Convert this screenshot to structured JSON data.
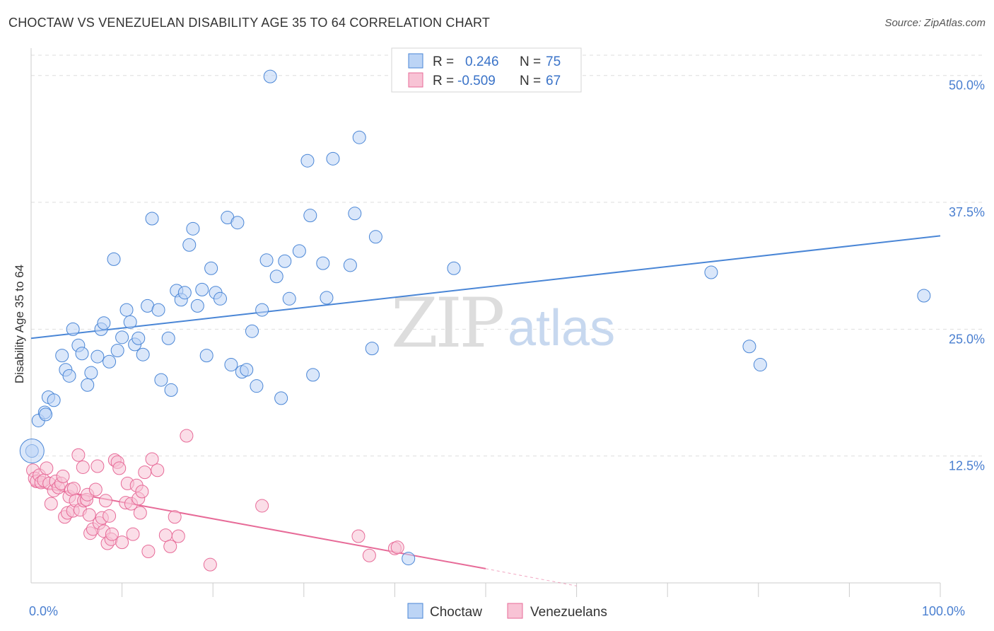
{
  "title": "CHOCTAW VS VENEZUELAN DISABILITY AGE 35 TO 64 CORRELATION CHART",
  "source": "Source: ZipAtlas.com",
  "watermark": {
    "zip": "ZIP",
    "atlas": "atlas"
  },
  "colors": {
    "choctaw": "#4a86d6",
    "choctaw_fill": "#bcd4f5",
    "venezuelans": "#e76b98",
    "venezuelans_fill": "#f8c3d5",
    "grid": "#dddddd",
    "tick": "#4a7fd0"
  },
  "legend_top": {
    "rows": [
      {
        "r_label": "R =",
        "r_value": "0.246",
        "n_label": "N =",
        "n_value": "75"
      },
      {
        "r_label": "R =",
        "r_value": "-0.509",
        "n_label": "N =",
        "n_value": "67"
      }
    ]
  },
  "legend_bottom": [
    "Choctaw",
    "Venezuelans"
  ],
  "chart_data": {
    "type": "scatter",
    "ylabel": "Disability Age 35 to 64",
    "xlim": [
      0,
      100
    ],
    "ylim": [
      0,
      52
    ],
    "y_ticks": [
      {
        "value": 12.5,
        "label": "12.5%"
      },
      {
        "value": 25,
        "label": "25.0%"
      },
      {
        "value": 37.5,
        "label": "37.5%"
      },
      {
        "value": 50,
        "label": "50.0%"
      }
    ],
    "x_tick_labels": [
      {
        "value": 0,
        "label": "0.0%"
      },
      {
        "value": 100,
        "label": "100.0%"
      }
    ],
    "x_minor_ticks": [
      10,
      20,
      30,
      40,
      50,
      60,
      70,
      80,
      90,
      100
    ],
    "grid": true,
    "legend_position": "top-center",
    "series": [
      {
        "name": "Choctaw",
        "points": [
          [
            0.1,
            13.0
          ],
          [
            0.8,
            16.0
          ],
          [
            1.5,
            16.8
          ],
          [
            1.9,
            18.3
          ],
          [
            2.5,
            18.0
          ],
          [
            1.6,
            16.6
          ],
          [
            3.4,
            22.4
          ],
          [
            3.8,
            21.0
          ],
          [
            4.2,
            20.4
          ],
          [
            4.6,
            25.0
          ],
          [
            5.2,
            23.4
          ],
          [
            5.6,
            22.6
          ],
          [
            6.2,
            19.5
          ],
          [
            6.6,
            20.7
          ],
          [
            7.3,
            22.3
          ],
          [
            7.7,
            25.0
          ],
          [
            8.0,
            25.6
          ],
          [
            8.6,
            21.8
          ],
          [
            9.1,
            31.9
          ],
          [
            9.5,
            22.9
          ],
          [
            10.0,
            24.2
          ],
          [
            10.5,
            26.9
          ],
          [
            10.9,
            25.7
          ],
          [
            11.4,
            23.5
          ],
          [
            11.8,
            24.1
          ],
          [
            12.3,
            22.5
          ],
          [
            12.8,
            27.3
          ],
          [
            13.3,
            35.9
          ],
          [
            14.0,
            26.9
          ],
          [
            14.3,
            20.0
          ],
          [
            15.1,
            24.1
          ],
          [
            15.4,
            19.0
          ],
          [
            16.0,
            28.8
          ],
          [
            16.5,
            27.9
          ],
          [
            16.9,
            28.6
          ],
          [
            17.4,
            33.3
          ],
          [
            17.8,
            34.9
          ],
          [
            18.3,
            27.3
          ],
          [
            18.8,
            28.9
          ],
          [
            19.3,
            22.4
          ],
          [
            19.8,
            31.0
          ],
          [
            20.3,
            28.6
          ],
          [
            20.8,
            28.0
          ],
          [
            21.6,
            36.0
          ],
          [
            22.0,
            21.5
          ],
          [
            22.7,
            35.5
          ],
          [
            23.2,
            20.8
          ],
          [
            23.7,
            21.0
          ],
          [
            24.3,
            24.8
          ],
          [
            24.8,
            19.4
          ],
          [
            25.4,
            26.9
          ],
          [
            25.9,
            31.8
          ],
          [
            27.0,
            30.2
          ],
          [
            27.5,
            18.2
          ],
          [
            27.9,
            31.7
          ],
          [
            28.4,
            28.0
          ],
          [
            29.5,
            32.7
          ],
          [
            30.4,
            41.6
          ],
          [
            30.7,
            36.2
          ],
          [
            31.0,
            20.5
          ],
          [
            32.1,
            31.5
          ],
          [
            32.5,
            28.1
          ],
          [
            33.2,
            41.8
          ],
          [
            35.1,
            31.3
          ],
          [
            35.6,
            36.4
          ],
          [
            36.1,
            43.9
          ],
          [
            37.5,
            23.1
          ],
          [
            37.9,
            34.1
          ],
          [
            41.5,
            2.4
          ],
          [
            46.5,
            31.0
          ],
          [
            74.8,
            30.6
          ],
          [
            79.0,
            23.3
          ],
          [
            80.2,
            21.5
          ],
          [
            98.2,
            28.3
          ],
          [
            26.3,
            49.9
          ]
        ],
        "trend": {
          "x": [
            0,
            100
          ],
          "y": [
            24.1,
            34.2
          ]
        }
      },
      {
        "name": "Venezuelans",
        "points": [
          [
            0.2,
            11.1
          ],
          [
            0.4,
            10.3
          ],
          [
            0.6,
            10.0
          ],
          [
            0.9,
            10.6
          ],
          [
            1.1,
            9.9
          ],
          [
            1.4,
            10.1
          ],
          [
            1.7,
            11.3
          ],
          [
            2.0,
            9.8
          ],
          [
            2.2,
            7.8
          ],
          [
            2.5,
            9.1
          ],
          [
            2.7,
            10.0
          ],
          [
            3.0,
            9.4
          ],
          [
            3.3,
            9.8
          ],
          [
            3.5,
            10.5
          ],
          [
            3.7,
            6.5
          ],
          [
            4.0,
            6.9
          ],
          [
            4.2,
            8.5
          ],
          [
            4.4,
            9.2
          ],
          [
            4.6,
            7.1
          ],
          [
            4.7,
            9.3
          ],
          [
            4.9,
            8.1
          ],
          [
            5.2,
            12.6
          ],
          [
            5.4,
            7.2
          ],
          [
            5.7,
            11.4
          ],
          [
            5.8,
            8.1
          ],
          [
            6.1,
            8.2
          ],
          [
            6.2,
            8.7
          ],
          [
            6.4,
            6.7
          ],
          [
            6.5,
            4.9
          ],
          [
            6.8,
            5.3
          ],
          [
            7.1,
            9.2
          ],
          [
            7.3,
            11.5
          ],
          [
            7.5,
            5.9
          ],
          [
            7.8,
            6.4
          ],
          [
            8.0,
            5.1
          ],
          [
            8.2,
            8.1
          ],
          [
            8.4,
            3.9
          ],
          [
            8.6,
            6.6
          ],
          [
            8.8,
            4.3
          ],
          [
            8.9,
            4.8
          ],
          [
            9.2,
            12.1
          ],
          [
            9.5,
            11.9
          ],
          [
            9.7,
            11.3
          ],
          [
            10.4,
            7.9
          ],
          [
            10.6,
            9.8
          ],
          [
            11.0,
            7.8
          ],
          [
            11.2,
            4.8
          ],
          [
            11.6,
            9.6
          ],
          [
            11.8,
            8.3
          ],
          [
            12.0,
            6.9
          ],
          [
            12.2,
            9.0
          ],
          [
            12.5,
            10.9
          ],
          [
            12.9,
            3.1
          ],
          [
            13.3,
            12.2
          ],
          [
            13.9,
            11.1
          ],
          [
            14.8,
            4.7
          ],
          [
            15.3,
            3.6
          ],
          [
            15.8,
            6.5
          ],
          [
            16.2,
            4.6
          ],
          [
            17.1,
            14.5
          ],
          [
            19.7,
            1.8
          ],
          [
            25.4,
            7.6
          ],
          [
            36.0,
            4.6
          ],
          [
            37.2,
            2.7
          ],
          [
            40.0,
            3.4
          ],
          [
            40.3,
            3.5
          ],
          [
            10.0,
            4.0
          ]
        ],
        "trend": {
          "x": [
            0,
            50
          ],
          "y": [
            9.6,
            1.4
          ]
        },
        "trend_dashed": {
          "x": [
            50,
            60
          ],
          "y": [
            1.4,
            -0.3
          ]
        }
      }
    ]
  }
}
